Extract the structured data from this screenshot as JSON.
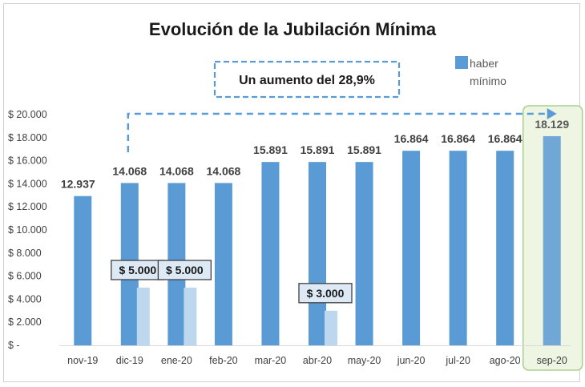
{
  "chart_data": {
    "type": "bar",
    "title": "Evolución de la Jubilación Mínima",
    "categories": [
      "nov-19",
      "dic-19",
      "ene-20",
      "feb-20",
      "mar-20",
      "abr-20",
      "may-20",
      "jun-20",
      "jul-20",
      "ago-20",
      "sep-20"
    ],
    "series": [
      {
        "name": "haber mínimo",
        "values": [
          12937,
          14068,
          14068,
          14068,
          15891,
          15891,
          15891,
          16864,
          16864,
          16864,
          18129
        ],
        "labels": [
          "12.937",
          "14.068",
          "14.068",
          "14.068",
          "15.891",
          "15.891",
          "15.891",
          "16.864",
          "16.864",
          "16.864",
          "18.129"
        ],
        "color": "#5b9bd5"
      },
      {
        "values": [
          null,
          5000,
          5000,
          null,
          null,
          3000,
          null,
          null,
          null,
          null,
          null
        ],
        "labels": [
          null,
          "$ 5.000",
          "$ 5.000",
          null,
          null,
          "$ 3.000",
          null,
          null,
          null,
          null,
          null
        ],
        "color": "#bdd7ee"
      }
    ],
    "legend": {
      "label_line1": "haber",
      "label_line2": "mínimo",
      "position": "top-right"
    },
    "annotation": "Un aumento del 28,9%",
    "highlight_category": "sep-20",
    "highlight_bar_color": "#6fa8d6",
    "highlight_fill": "#eef5e2",
    "highlight_border": "#a9d08e",
    "ylim": [
      0,
      20000
    ],
    "yticks": [
      0,
      2000,
      4000,
      6000,
      8000,
      10000,
      12000,
      14000,
      16000,
      18000,
      20000
    ],
    "ytick_labels": [
      "$ -",
      "$ 2.000",
      "$ 4.000",
      "$ 6.000",
      "$ 8.000",
      "$ 10.000",
      "$ 12.000",
      "$ 14.000",
      "$ 16.000",
      "$ 18.000",
      "$ 20.000"
    ],
    "grid": false
  }
}
